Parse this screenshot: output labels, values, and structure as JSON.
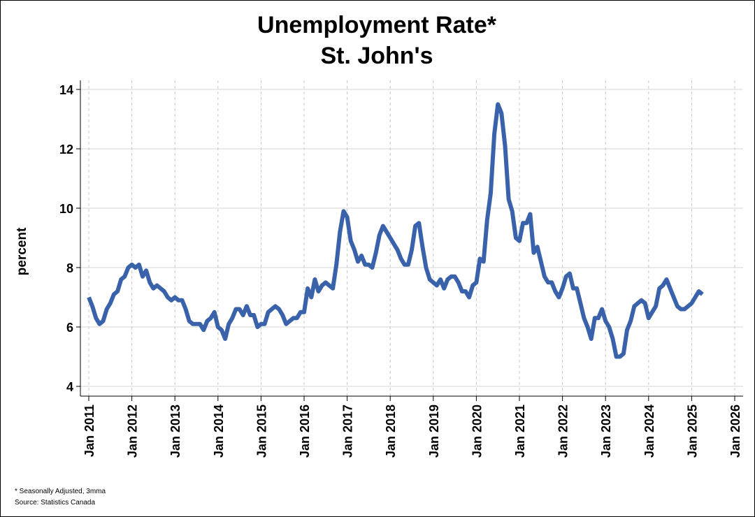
{
  "chart_data": {
    "type": "line",
    "title": "Unemployment Rate*",
    "subtitle": "St. John's",
    "ylabel": "percent",
    "xlabel": "",
    "ylim": [
      4,
      14
    ],
    "yticks": [
      "4",
      "6",
      "8",
      "10",
      "12",
      "14"
    ],
    "xticks": [
      "Jan 2011",
      "Jan 2012",
      "Jan 2013",
      "Jan 2014",
      "Jan 2015",
      "Jan 2016",
      "Jan 2017",
      "Jan 2018",
      "Jan 2019",
      "Jan 2020",
      "Jan 2021",
      "Jan 2022",
      "Jan 2023",
      "Jan 2024",
      "Jan 2025",
      "Jan 2026"
    ],
    "grid": "horizontal solid, vertical dashed",
    "line_color": "#3a62ab",
    "start": "2011-01",
    "frequency": "monthly",
    "series": [
      {
        "values": [
          7.0,
          6.7,
          6.3,
          6.1,
          6.2,
          6.6,
          6.8,
          7.1,
          7.2,
          7.6,
          7.7,
          8.0,
          8.1,
          8.0,
          8.1,
          7.7,
          7.9,
          7.5,
          7.3,
          7.4,
          7.3,
          7.2,
          7.0,
          6.9,
          7.0,
          6.9,
          6.9,
          6.6,
          6.2,
          6.1,
          6.1,
          6.1,
          5.9,
          6.2,
          6.3,
          6.5,
          6.0,
          5.9,
          5.6,
          6.1,
          6.3,
          6.6,
          6.6,
          6.4,
          6.7,
          6.4,
          6.4,
          6.0,
          6.1,
          6.1,
          6.5,
          6.6,
          6.7,
          6.6,
          6.4,
          6.1,
          6.2,
          6.3,
          6.3,
          6.5,
          6.5,
          7.3,
          7.0,
          7.6,
          7.2,
          7.4,
          7.5,
          7.4,
          7.3,
          8.1,
          9.2,
          9.9,
          9.7,
          8.9,
          8.6,
          8.2,
          8.4,
          8.1,
          8.1,
          8.0,
          8.5,
          9.1,
          9.4,
          9.2,
          9.0,
          8.8,
          8.6,
          8.3,
          8.1,
          8.1,
          8.6,
          9.4,
          9.5,
          8.7,
          8.0,
          7.6,
          7.5,
          7.4,
          7.6,
          7.3,
          7.6,
          7.7,
          7.7,
          7.5,
          7.2,
          7.2,
          7.0,
          7.4,
          7.5,
          8.3,
          8.2,
          9.6,
          10.5,
          12.5,
          13.5,
          13.2,
          12.1,
          10.3,
          9.9,
          9.0,
          8.9,
          9.5,
          9.5,
          9.8,
          8.5,
          8.7,
          8.2,
          7.7,
          7.5,
          7.5,
          7.2,
          7.0,
          7.3,
          7.7,
          7.8,
          7.3,
          7.3,
          6.8,
          6.3,
          6.0,
          5.6,
          6.3,
          6.3,
          6.6,
          6.2,
          6.0,
          5.6,
          5.0,
          5.0,
          5.1,
          5.9,
          6.2,
          6.7,
          6.8,
          6.9,
          6.8,
          6.3,
          6.5,
          6.7,
          7.3,
          7.4,
          7.6,
          7.3,
          7.0,
          6.7,
          6.6,
          6.6,
          6.7,
          6.8,
          7.0,
          7.2,
          7.1
        ]
      }
    ]
  },
  "footnotes": {
    "note": "* Seasonally Adjusted, 3mma",
    "source": "Source: Statistics Canada"
  }
}
